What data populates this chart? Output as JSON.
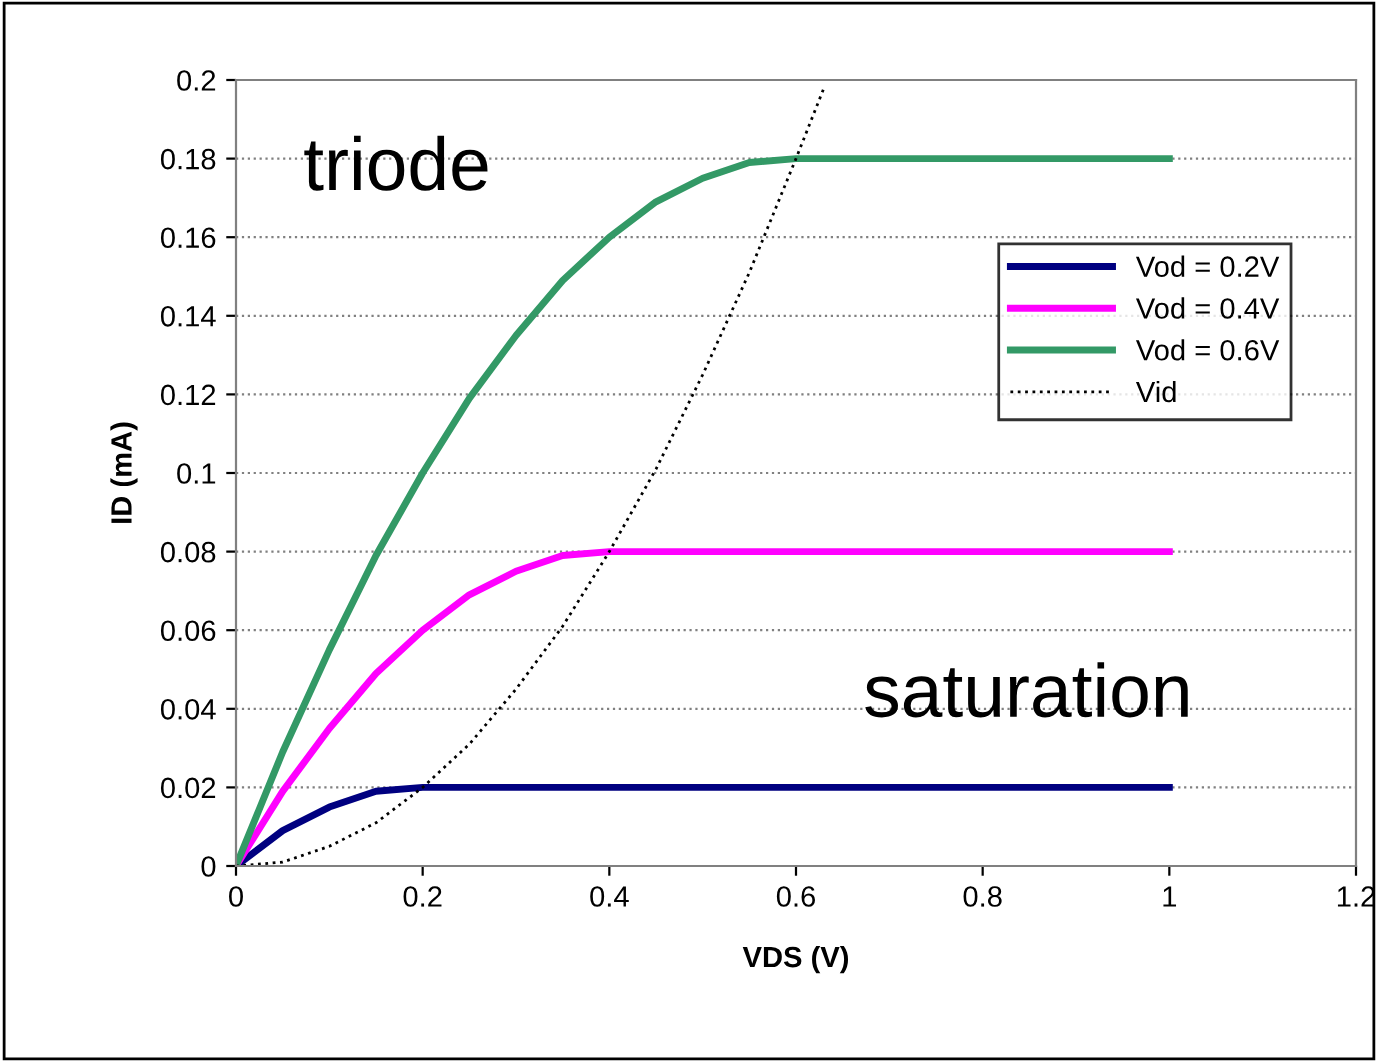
{
  "chart_data": {
    "type": "line",
    "xlabel": "VDS (V)",
    "ylabel": "ID (mA)",
    "xlim": [
      0,
      1.2
    ],
    "xticks": [
      0,
      0.2,
      0.4,
      0.6,
      0.8,
      1,
      1.2
    ],
    "ylim": [
      0,
      0.2
    ],
    "yticks": [
      0,
      0.02,
      0.04,
      0.06,
      0.08,
      0.1,
      0.12,
      0.14,
      0.16,
      0.18,
      0.2
    ],
    "grid": "y",
    "legend": "top right",
    "marker": "none",
    "annotations": [
      "triode",
      "saturation"
    ],
    "series": [
      {
        "name": "Vod = 0.2V",
        "color": "#000080",
        "x": [
          0,
          0.05,
          0.1,
          0.15,
          0.2,
          1
        ],
        "values": [
          0,
          0.009,
          0.015,
          0.019,
          0.02,
          0.02
        ]
      },
      {
        "name": "Vod = 0.4V",
        "color": "#ff00ff",
        "x": [
          0,
          0.05,
          0.1,
          0.15,
          0.2,
          0.25,
          0.3,
          0.35,
          0.4,
          1
        ],
        "values": [
          0,
          0.019,
          0.035,
          0.049,
          0.06,
          0.069,
          0.075,
          0.079,
          0.08,
          0.08
        ]
      },
      {
        "name": "Vod = 0.6V",
        "color": "#339966",
        "x": [
          0,
          0.05,
          0.1,
          0.15,
          0.2,
          0.25,
          0.3,
          0.35,
          0.4,
          0.45,
          0.5,
          0.55,
          0.6,
          1
        ],
        "values": [
          0,
          0.029,
          0.055,
          0.079,
          0.1,
          0.119,
          0.135,
          0.149,
          0.16,
          0.169,
          0.175,
          0.179,
          0.18,
          0.18
        ]
      },
      {
        "name": "Vid",
        "color": "#000000",
        "line_style": "dotted",
        "x": [
          0,
          0.05,
          0.1,
          0.15,
          0.2,
          0.25,
          0.3,
          0.35,
          0.4,
          0.45,
          0.5,
          0.55,
          0.6,
          0.63
        ],
        "values": [
          0,
          0.001,
          0.005,
          0.011,
          0.02,
          0.031,
          0.045,
          0.061,
          0.08,
          0.101,
          0.125,
          0.151,
          0.18,
          0.198
        ]
      }
    ]
  }
}
